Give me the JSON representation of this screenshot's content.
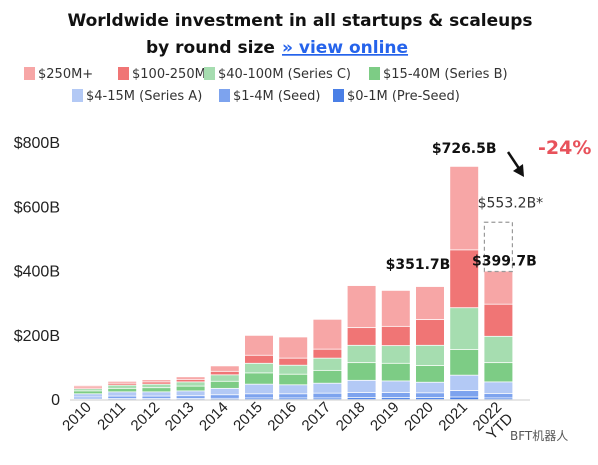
{
  "chart_data": {
    "type": "bar",
    "stacked": true,
    "title_line1": "Worldwide investment in all startups & scaleups",
    "title_line2": "by round size",
    "link_text": "» view online",
    "categories": [
      "2010",
      "2011",
      "2012",
      "2013",
      "2014",
      "2015",
      "2016",
      "2017",
      "2018",
      "2019",
      "2020",
      "2021",
      "2022 YTD"
    ],
    "y_ticks": [
      "$800B",
      "$600B",
      "$400B",
      "$200B",
      "0"
    ],
    "ylim": [
      0,
      800
    ],
    "series": [
      {
        "name": "$0-1M (Pre-Seed)",
        "color": "#4a7fe6",
        "values": [
          2,
          3,
          3,
          3,
          4,
          5,
          5,
          5,
          6,
          6,
          6,
          8,
          5
        ]
      },
      {
        "name": "$1-4M (Seed)",
        "color": "#7da3ee",
        "values": [
          6,
          8,
          8,
          9,
          11,
          13,
          13,
          15,
          16,
          16,
          15,
          20,
          14
        ]
      },
      {
        "name": "$4-15M (Series A)",
        "color": "#b3c9f5",
        "values": [
          10,
          13,
          13,
          15,
          20,
          30,
          28,
          31,
          38,
          36,
          33,
          48,
          36
        ]
      },
      {
        "name": "$15-40M (Series B)",
        "color": "#7dcc85",
        "values": [
          9,
          11,
          13,
          15,
          22,
          35,
          33,
          40,
          55,
          55,
          52,
          80,
          60
        ]
      },
      {
        "name": "$40-100M (Series C)",
        "color": "#a6ddb0",
        "values": [
          7,
          10,
          11,
          13,
          20,
          30,
          28,
          38,
          54,
          55,
          63,
          130,
          82
        ]
      },
      {
        "name": "$100-250M",
        "color": "#f07575",
        "values": [
          5,
          6,
          7,
          8,
          11,
          25,
          22,
          28,
          55,
          60,
          80,
          180,
          100
        ]
      },
      {
        "name": "$250M+",
        "color": "#f7a6a6",
        "values": [
          5,
          6,
          7,
          8,
          17,
          62,
          66,
          93,
          131,
          112,
          103,
          260,
          103
        ]
      }
    ],
    "legend_rows": [
      [
        "$250M+",
        "$100-250M",
        "$40-100M (Series C)",
        "$15-40M (Series B)"
      ],
      [
        "$4-15M (Series A)",
        "$1-4M (Seed)",
        "$0-1M (Pre-Seed)"
      ]
    ],
    "annotations": {
      "y2020": "$351.7B",
      "y2021": "$726.5B",
      "y2022": "$399.7B",
      "projection": "$553.2B*",
      "change": "-24%"
    },
    "projection_value": 553.2,
    "watermark": "BFT机器人"
  }
}
